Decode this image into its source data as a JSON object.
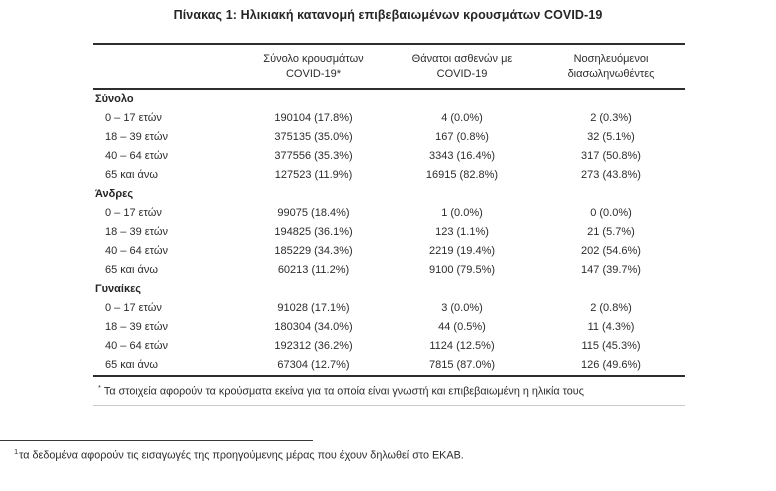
{
  "title": "Πίνακας 1: Ηλικιακή κατανομή επιβεβαιωμένων κρουσμάτων COVID-19",
  "table": {
    "columns": [
      {
        "line1": "Σύνολο κρουσμάτων",
        "line2": "COVID-19*"
      },
      {
        "line1": "Θάνατοι ασθενών με",
        "line2": "COVID-19"
      },
      {
        "line1": "Νοσηλευόμενοι",
        "line2": "διασωληνωθέντες"
      }
    ],
    "sections": [
      {
        "header": "Σύνολο",
        "rows": [
          {
            "label": "0 – 17 ετών",
            "cases": "190104 (17.8%)",
            "deaths": "4 (0.0%)",
            "intubated": "2 (0.3%)"
          },
          {
            "label": "18 – 39 ετών",
            "cases": "375135 (35.0%)",
            "deaths": "167 (0.8%)",
            "intubated": "32 (5.1%)"
          },
          {
            "label": "40 – 64 ετών",
            "cases": "377556 (35.3%)",
            "deaths": "3343 (16.4%)",
            "intubated": "317 (50.8%)"
          },
          {
            "label": "65 και άνω",
            "cases": "127523 (11.9%)",
            "deaths": "16915 (82.8%)",
            "intubated": "273 (43.8%)"
          }
        ]
      },
      {
        "header": "Άνδρες",
        "rows": [
          {
            "label": "0 – 17 ετών",
            "cases": "99075 (18.4%)",
            "deaths": "1 (0.0%)",
            "intubated": "0 (0.0%)"
          },
          {
            "label": "18 – 39 ετών",
            "cases": "194825 (36.1%)",
            "deaths": "123 (1.1%)",
            "intubated": "21 (5.7%)"
          },
          {
            "label": "40 – 64 ετών",
            "cases": "185229 (34.3%)",
            "deaths": "2219 (19.4%)",
            "intubated": "202 (54.6%)"
          },
          {
            "label": "65 και άνω",
            "cases": "60213 (11.2%)",
            "deaths": "9100 (79.5%)",
            "intubated": "147 (39.7%)"
          }
        ]
      },
      {
        "header": "Γυναίκες",
        "rows": [
          {
            "label": "0 – 17 ετών",
            "cases": "91028 (17.1%)",
            "deaths": "3 (0.0%)",
            "intubated": "2 (0.8%)"
          },
          {
            "label": "18 – 39 ετών",
            "cases": "180304 (34.0%)",
            "deaths": "44 (0.5%)",
            "intubated": "11 (4.3%)"
          },
          {
            "label": "40 – 64 ετών",
            "cases": "192312 (36.2%)",
            "deaths": "1124 (12.5%)",
            "intubated": "115 (45.3%)"
          },
          {
            "label": "65 και άνω",
            "cases": "67304 (12.7%)",
            "deaths": "7815 (87.0%)",
            "intubated": "126 (49.6%)"
          }
        ]
      }
    ],
    "footnote_marker": "*",
    "footnote_text": "Τα στοιχεία αφορούν τα κρούσματα εκείνα για τα οποία είναι γνωστή και επιβεβαιωμένη η ηλικία τους"
  },
  "page_footnote": {
    "marker": "1",
    "text": "τα δεδομένα αφορούν τις εισαγωγές της προηγούμενης μέρας που έχουν δηλωθεί στο ΕΚΑΒ."
  }
}
